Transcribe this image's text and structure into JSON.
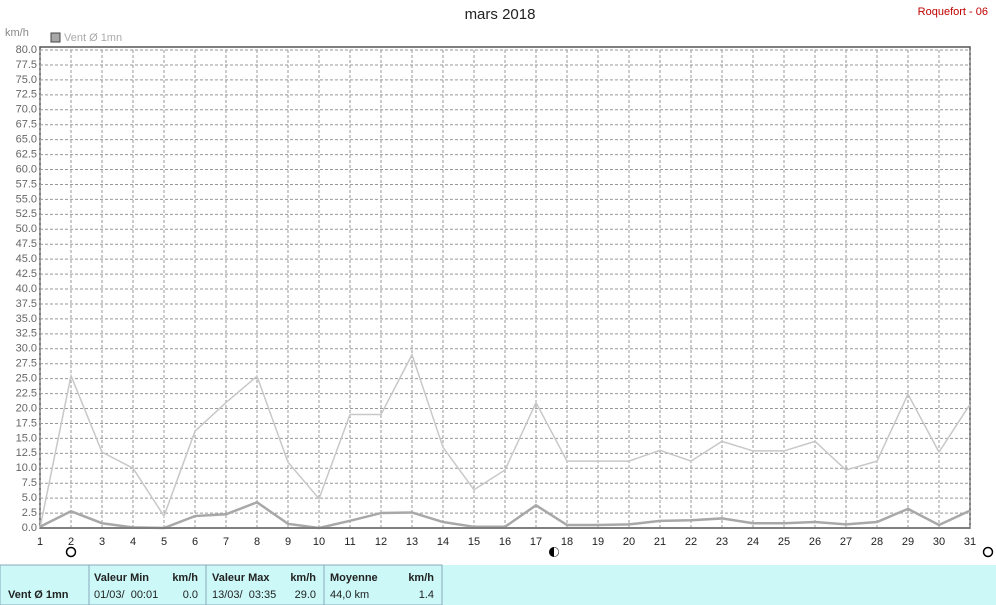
{
  "chart_data": {
    "type": "line",
    "title": "mars 2018",
    "station": "Roquefort - 06",
    "ylabel": "km/h",
    "x": [
      1,
      2,
      3,
      4,
      5,
      6,
      7,
      8,
      9,
      10,
      11,
      12,
      13,
      14,
      15,
      16,
      17,
      18,
      19,
      20,
      21,
      22,
      23,
      24,
      25,
      26,
      27,
      28,
      29,
      30,
      31
    ],
    "xlim": [
      1,
      31
    ],
    "xticks": [
      1,
      2,
      3,
      4,
      5,
      6,
      7,
      8,
      9,
      10,
      11,
      12,
      13,
      14,
      15,
      16,
      17,
      18,
      19,
      20,
      21,
      22,
      23,
      24,
      25,
      26,
      27,
      28,
      29,
      30,
      31
    ],
    "ylim": [
      0,
      80
    ],
    "yticks": [
      {
        "value": 0,
        "label": "0.0"
      },
      {
        "value": 2.5,
        "label": "2.5"
      },
      {
        "value": 5,
        "label": "5.0"
      },
      {
        "value": 7.5,
        "label": "7.5"
      },
      {
        "value": 10,
        "label": "10.0"
      },
      {
        "value": 12.5,
        "label": "12.5"
      },
      {
        "value": 15,
        "label": "15.0"
      },
      {
        "value": 17.5,
        "label": "17.5"
      },
      {
        "value": 20,
        "label": "20.0"
      },
      {
        "value": 22.5,
        "label": "22.5"
      },
      {
        "value": 25,
        "label": "25.0"
      },
      {
        "value": 27.5,
        "label": "27.5"
      },
      {
        "value": 30,
        "label": "30.0"
      },
      {
        "value": 32.5,
        "label": "32.5"
      },
      {
        "value": 35,
        "label": "35.0"
      },
      {
        "value": 37.5,
        "label": "37.5"
      },
      {
        "value": 40,
        "label": "40.0"
      },
      {
        "value": 42.5,
        "label": "42.5"
      },
      {
        "value": 45,
        "label": "45.0"
      },
      {
        "value": 47.5,
        "label": "47.5"
      },
      {
        "value": 50,
        "label": "50.0"
      },
      {
        "value": 52.5,
        "label": "52.5"
      },
      {
        "value": 55,
        "label": "55.0"
      },
      {
        "value": 57.5,
        "label": "57.5"
      },
      {
        "value": 60,
        "label": "60.0"
      },
      {
        "value": 62.5,
        "label": "62.5"
      },
      {
        "value": 65,
        "label": "65.0"
      },
      {
        "value": 67.5,
        "label": "67.5"
      },
      {
        "value": 70,
        "label": "70.0"
      },
      {
        "value": 72.5,
        "label": "72.5"
      },
      {
        "value": 75,
        "label": "75.0"
      },
      {
        "value": 77.5,
        "label": "77.5"
      },
      {
        "value": 80,
        "label": "80.0"
      }
    ],
    "grid": true,
    "series": [
      {
        "color": "#c8c8c8",
        "width": 1.5,
        "values": [
          0,
          25.5,
          12.7,
          10,
          2,
          16.2,
          21,
          25.4,
          11,
          4.9,
          19,
          19,
          29,
          13.5,
          6.4,
          9.7,
          21,
          11.2,
          11.2,
          11.2,
          13,
          11.2,
          14.5,
          12.9,
          12.9,
          14.5,
          9.7,
          11.2,
          22.4,
          12.7,
          20.7
        ]
      },
      {
        "name": "Vent Ø 1mn",
        "color": "#a8a8a8",
        "width": 2.5,
        "values": [
          0.2,
          2.8,
          0.8,
          0.1,
          0,
          2,
          2.3,
          4.3,
          0.7,
          0,
          1.2,
          2.5,
          2.6,
          1,
          0.2,
          0.2,
          3.8,
          0.5,
          0.5,
          0.6,
          1.2,
          1.3,
          1.6,
          0.8,
          0.8,
          1,
          0.6,
          1,
          3.2,
          0.5,
          2.9
        ]
      }
    ]
  },
  "summary": {
    "label": "Vent Ø 1mn",
    "min": {
      "title": "Valeur Min",
      "unit": "km/h",
      "date": "01/03/  00:01",
      "value": "0.0"
    },
    "max": {
      "title": "Valeur Max",
      "unit": "km/h",
      "date": "13/03/  03:35",
      "value": "29.0"
    },
    "mean": {
      "title": "Moyenne",
      "unit": "km/h",
      "distance": "44,0 km",
      "value": "1.4"
    }
  }
}
